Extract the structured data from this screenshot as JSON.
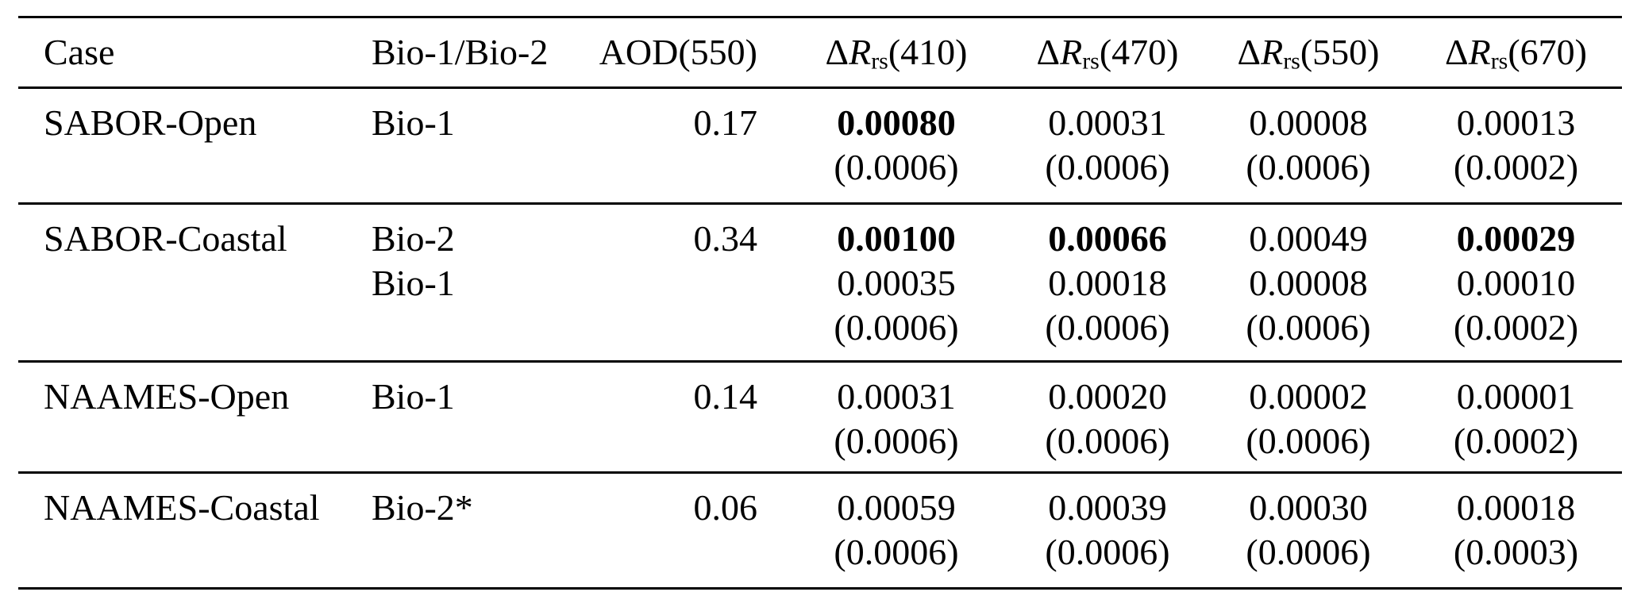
{
  "colors": {
    "background": "#ffffff",
    "text": "#000000",
    "rule": "#000000"
  },
  "table": {
    "header": {
      "case": "Case",
      "bio": "Bio-1/Bio-2",
      "aod": "AOD(550)",
      "delta": "Δ",
      "r_symbol": "R",
      "r_subscript": "rs",
      "wavelengths": [
        "(410)",
        "(470)",
        "(550)",
        "(670)"
      ]
    },
    "rows": [
      {
        "case": "SABOR-Open",
        "bio_lines": [
          "Bio-1"
        ],
        "aod": "0.17",
        "value_lines": [
          {
            "cells": [
              {
                "text": "0.00080",
                "bold": true
              },
              {
                "text": "0.00031",
                "bold": false
              },
              {
                "text": "0.00008",
                "bold": false
              },
              {
                "text": "0.00013",
                "bold": false
              }
            ]
          },
          {
            "cells": [
              {
                "text": "(0.0006)",
                "bold": false
              },
              {
                "text": "(0.0006)",
                "bold": false
              },
              {
                "text": "(0.0006)",
                "bold": false
              },
              {
                "text": "(0.0002)",
                "bold": false
              }
            ]
          }
        ]
      },
      {
        "case": "SABOR-Coastal",
        "bio_lines": [
          "Bio-2",
          "Bio-1"
        ],
        "aod": "0.34",
        "value_lines": [
          {
            "cells": [
              {
                "text": "0.00100",
                "bold": true
              },
              {
                "text": "0.00066",
                "bold": true
              },
              {
                "text": "0.00049",
                "bold": false
              },
              {
                "text": "0.00029",
                "bold": true
              }
            ]
          },
          {
            "cells": [
              {
                "text": "0.00035",
                "bold": false
              },
              {
                "text": "0.00018",
                "bold": false
              },
              {
                "text": "0.00008",
                "bold": false
              },
              {
                "text": "0.00010",
                "bold": false
              }
            ]
          },
          {
            "cells": [
              {
                "text": "(0.0006)",
                "bold": false
              },
              {
                "text": "(0.0006)",
                "bold": false
              },
              {
                "text": "(0.0006)",
                "bold": false
              },
              {
                "text": "(0.0002)",
                "bold": false
              }
            ]
          }
        ]
      },
      {
        "case": "NAAMES-Open",
        "bio_lines": [
          "Bio-1"
        ],
        "aod": "0.14",
        "value_lines": [
          {
            "cells": [
              {
                "text": "0.00031",
                "bold": false
              },
              {
                "text": "0.00020",
                "bold": false
              },
              {
                "text": "0.00002",
                "bold": false
              },
              {
                "text": "0.00001",
                "bold": false
              }
            ]
          },
          {
            "cells": [
              {
                "text": "(0.0006)",
                "bold": false
              },
              {
                "text": "(0.0006)",
                "bold": false
              },
              {
                "text": "(0.0006)",
                "bold": false
              },
              {
                "text": "(0.0002)",
                "bold": false
              }
            ]
          }
        ]
      },
      {
        "case": "NAAMES-Coastal",
        "bio_lines": [
          "Bio-2*"
        ],
        "aod": "0.06",
        "value_lines": [
          {
            "cells": [
              {
                "text": "0.00059",
                "bold": false
              },
              {
                "text": "0.00039",
                "bold": false
              },
              {
                "text": "0.00030",
                "bold": false
              },
              {
                "text": "0.00018",
                "bold": false
              }
            ]
          },
          {
            "cells": [
              {
                "text": "(0.0006)",
                "bold": false
              },
              {
                "text": "(0.0006)",
                "bold": false
              },
              {
                "text": "(0.0006)",
                "bold": false
              },
              {
                "text": "(0.0003)",
                "bold": false
              }
            ]
          }
        ]
      }
    ]
  }
}
